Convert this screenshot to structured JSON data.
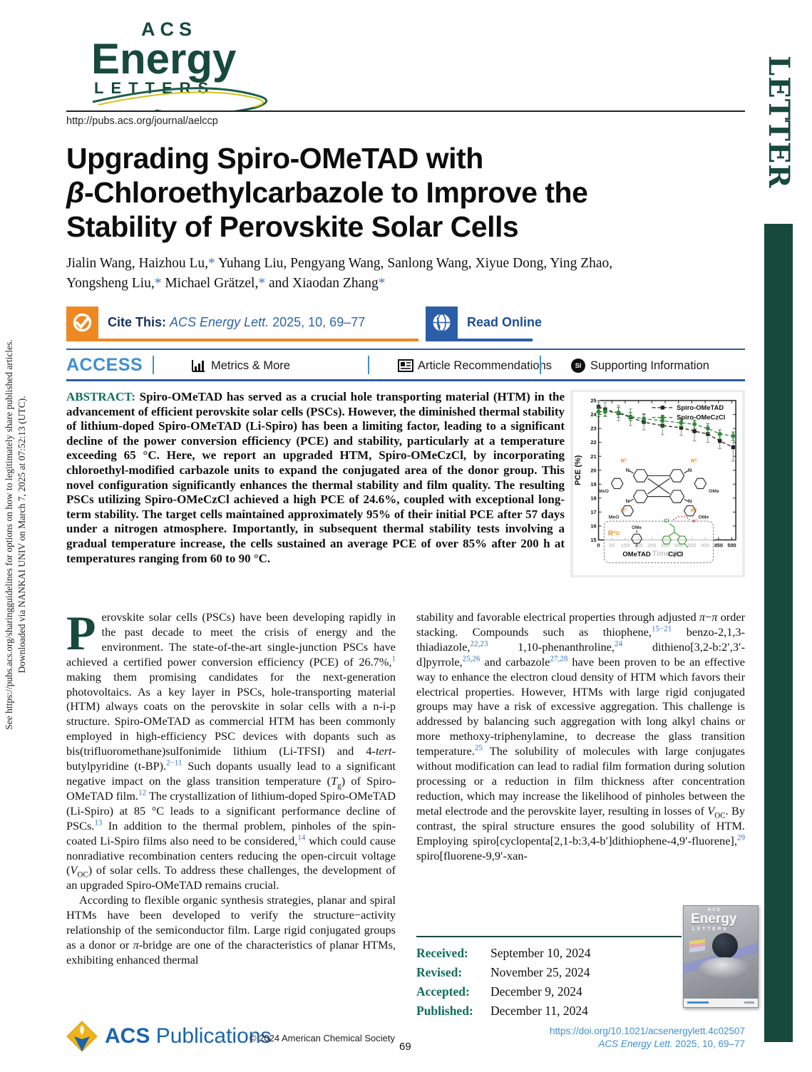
{
  "journal": {
    "logo_acs": "ACS",
    "logo_energy": "Energy",
    "logo_letters": "LETTERS",
    "url": "http://pubs.acs.org/journal/aelccp",
    "section_label": "LETTER"
  },
  "side_note": {
    "line1": "See https://pubs.acs.org/sharingguidelines for options on how to legitimately share published articles.",
    "line2": "Downloaded via NANKAI UNIV on March 7, 2025 at 07:52:13 (UTC)."
  },
  "title": {
    "lines": [
      [
        [
          "Upgrading Spiro-OMeTAD with"
        ]
      ],
      [
        [
          "β",
          "i"
        ],
        [
          "-Chloroethylcarbazole to Improve the"
        ]
      ],
      [
        [
          "Stability of Perovskite Solar Cells"
        ]
      ]
    ]
  },
  "authors": {
    "lines": [
      [
        [
          "Jialin Wang, Haizhou Lu,"
        ],
        [
          "*",
          "blue"
        ],
        [
          " Yuhang Liu, Pengyang Wang, Sanlong Wang, Xiyue Dong, Ying Zhao,"
        ]
      ],
      [
        [
          "Yongsheng Liu,"
        ],
        [
          "*",
          "blue"
        ],
        [
          " Michael Grätzel,"
        ],
        [
          "*",
          "blue"
        ],
        [
          " and Xiaodan Zhang"
        ],
        [
          "*",
          "blue"
        ]
      ]
    ]
  },
  "cite": {
    "label": "Cite This:",
    "ref_italic": "ACS Energy Lett.",
    "ref_rest": " 2025, 10, 69–77",
    "read_online": "Read Online"
  },
  "access_bar": {
    "access": "ACCESS",
    "metrics": "Metrics & More",
    "recommendations": "Article Recommendations",
    "supporting": "Supporting Information",
    "si_badge": "SI"
  },
  "abstract": {
    "label": "ABSTRACT:",
    "text": " Spiro-OMeTAD has served as a crucial hole transporting material (HTM) in the advancement of efficient perovskite solar cells (PSCs). However, the diminished thermal stability of lithium-doped Spiro-OMeTAD (Li-Spiro) has been a limiting factor, leading to a significant decline of the power conversion efficiency (PCE) and stability, particularly at a temperature exceeding 65 °C. Here, we report an upgraded HTM, Spiro-OMeCzCl, by incorporating chloroethyl-modified carbazole units to expand the conjugated area of the donor group. This novel configuration significantly enhances the thermal stability and film quality. The resulting PSCs utilizing Spiro-OMeCzCl achieved a high PCE of 24.6%, coupled with exceptional long-term stability. The target cells maintained approximately 95% of their initial PCE after 57 days under a nitrogen atmosphere. Importantly, in subsequent thermal stability tests involving a gradual temperature increase, the cells sustained an average PCE of over 85% after 200 h at temperatures ranging from 60 to 90 °C."
  },
  "chart_data": {
    "type": "line",
    "xlabel": "Time (h)",
    "ylabel": "PCE (%)",
    "xlim": [
      0,
      515
    ],
    "ylim": [
      15,
      25
    ],
    "xticks": [
      0,
      50,
      100,
      150,
      200,
      250,
      300,
      350,
      400,
      450,
      500
    ],
    "yticks": [
      15,
      16,
      17,
      18,
      19,
      20,
      21,
      22,
      23,
      24,
      25
    ],
    "x": [
      0,
      25,
      75,
      120,
      170,
      240,
      310,
      360,
      410,
      455,
      505
    ],
    "series": [
      {
        "name": "Spiro-OMeTAD",
        "color": "#222222",
        "err_color": "#8a8a8a",
        "marker": "square",
        "values": [
          24.55,
          24.35,
          24.1,
          23.8,
          23.45,
          23.2,
          23.05,
          22.8,
          22.6,
          22.1,
          21.65
        ],
        "errors": [
          0.45,
          0.5,
          0.55,
          0.6,
          0.55,
          0.65,
          0.55,
          0.7,
          0.6,
          0.55,
          1.0
        ]
      },
      {
        "name": "Spiro-OMeCzCl",
        "color": "#2e8b3a",
        "err_color": "#2e8b3a",
        "marker": "circle",
        "values": [
          24.2,
          24.2,
          24.15,
          23.85,
          23.7,
          23.55,
          23.4,
          23.3,
          23.0,
          22.6,
          22.45
        ],
        "errors": [
          0.35,
          0.3,
          0.35,
          0.3,
          0.35,
          0.4,
          0.3,
          0.3,
          0.35,
          0.3,
          0.3
        ]
      }
    ],
    "legend_position": "top-right",
    "grid": false
  },
  "molecule": {
    "r2": "R²",
    "n": "N",
    "meo": "MeO",
    "ome": "OMe",
    "inset_r2": "R²=",
    "inset_ome": "OMe",
    "inset_cl": "Cl",
    "inset_e": "e⁻",
    "label_ometad": "OMeTAD",
    "label_czcl": "CzCl"
  },
  "body": {
    "dropcap": "P",
    "col1_p1": [
      [
        "erovskite solar cells (PSCs) have been developing rapidly in the past decade to meet the crisis of energy and the environment. The state-of-the-art single-junction PSCs have achieved a certified power conversion efficiency (PCE) of 26.7%,"
      ],
      [
        "1",
        "sup"
      ],
      [
        " making them promising candidates for the next-generation photovoltaics. As a key layer in PSCs, hole-transporting material (HTM) always coats on the perovskite in solar cells with a n-i-p structure. Spiro-OMeTAD as commercial HTM has been commonly employed in high-efficiency PSC devices with dopants such as bis(trifluoromethane)sulfonimide lithium (Li-TFSI) and 4-"
      ],
      [
        "tert",
        "i"
      ],
      [
        "-butylpyridine (t-BP)."
      ],
      [
        "2−11",
        "sup"
      ],
      [
        " Such dopants usually lead to a significant negative impact on the glass transition temperature ("
      ],
      [
        "T",
        "i"
      ],
      [
        "g",
        "sub"
      ],
      [
        ") of Spiro-OMeTAD film."
      ],
      [
        "12",
        "sup"
      ],
      [
        " The crystallization of lithium-doped Spiro-OMeTAD (Li-Spiro) at 85 °C leads to a significant performance decline of PSCs."
      ],
      [
        "13",
        "sup"
      ],
      [
        " In addition to the thermal problem, pinholes of the spin-coated Li-Spiro films also need to be considered,"
      ],
      [
        "14",
        "sup"
      ],
      [
        " which could cause nonradiative recombination centers reducing the open-circuit voltage ("
      ],
      [
        "V",
        "i"
      ],
      [
        "OC",
        "sub"
      ],
      [
        ") of solar cells. To address these challenges, the development of an upgraded Spiro-OMeTAD remains crucial."
      ]
    ],
    "col1_p2": [
      [
        "According to flexible organic synthesis strategies, planar and spiral HTMs have been developed to verify the structure−activity relationship of the semiconductor film. Large rigid conjugated groups as a donor or "
      ],
      [
        "π",
        "i"
      ],
      [
        "-bridge are one of the characteristics of planar HTMs, exhibiting enhanced thermal"
      ]
    ],
    "col2_p1": [
      [
        "stability and favorable electrical properties through adjusted "
      ],
      [
        "π",
        "i"
      ],
      [
        "−"
      ],
      [
        "π",
        "i"
      ],
      [
        " order stacking. Compounds such as thiophene,"
      ],
      [
        "15−21",
        "sup"
      ],
      [
        " benzo-2,1,3-thiadiazole,"
      ],
      [
        "22,23",
        "sup"
      ],
      [
        " 1,10-phenanthroline,"
      ],
      [
        "24",
        "sup"
      ],
      [
        " dithieno[3,2-b:2′,3′-d]pyrrole,"
      ],
      [
        "25,26",
        "sup"
      ],
      [
        " and carbazole"
      ],
      [
        "27,28",
        "sup"
      ],
      [
        " have been proven to be an effective way to enhance the electron cloud density of HTM which favors their electrical properties. However, HTMs with large rigid conjugated groups may have a risk of excessive aggregation. This challenge is addressed by balancing such aggregation with long alkyl chains or more methoxy-triphenylamine, to decrease the glass transition temperature."
      ],
      [
        "25",
        "sup"
      ],
      [
        " The solubility of molecules with large conjugates without modification can lead to radial film formation during solution processing or a reduction in film thickness after concentration reduction, which may increase the likelihood of pinholes between the metal electrode and the perovskite layer, resulting in losses of "
      ],
      [
        "V",
        "i"
      ],
      [
        "OC",
        "sub"
      ],
      [
        ". By contrast, the spiral structure ensures the good solubility of HTM. Employing spiro[cyclopenta[2,1-b:3,4-b′]dithiophene-4,9′-fluorene],"
      ],
      [
        "29",
        "sup"
      ],
      [
        " spiro[fluorene-9,9′-xan-"
      ]
    ]
  },
  "dates": {
    "items": [
      {
        "label": "Received:",
        "value": "September 10, 2024"
      },
      {
        "label": "Revised:",
        "value": "November 25, 2024"
      },
      {
        "label": "Accepted:",
        "value": "December 9, 2024"
      },
      {
        "label": "Published:",
        "value": "December 11, 2024"
      }
    ]
  },
  "footer": {
    "acs": "ACS",
    "publications": "Publications",
    "copyright": "© 2024 American Chemical Society",
    "page": "69",
    "doi": "https://doi.org/10.1021/acsenergylett.4c02507",
    "citation_italic": "ACS Energy Lett.",
    "citation_rest": " 2025, 10, 69–77"
  }
}
